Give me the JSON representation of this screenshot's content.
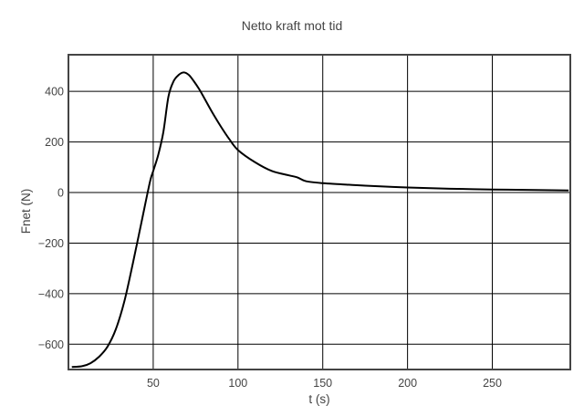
{
  "chart_data": {
    "type": "line",
    "title": "Netto kraft mot tid",
    "xlabel": "t (s)",
    "ylabel": "Fnet (N)",
    "xlim": [
      0,
      296
    ],
    "ylim": [
      -700,
      545
    ],
    "xticks": [
      50,
      100,
      150,
      200,
      250
    ],
    "xtick_labels": [
      "50",
      "100",
      "150",
      "200",
      "250"
    ],
    "yticks": [
      -600,
      -400,
      -200,
      0,
      200,
      400
    ],
    "ytick_labels": [
      "−600",
      "−400",
      "−200",
      "0",
      "200",
      "400"
    ],
    "grid": true,
    "series": [
      {
        "color": "#000000",
        "x": [
          2,
          8,
          13,
          18,
          23,
          28,
          33,
          38,
          43,
          48,
          50,
          53,
          56,
          59,
          62,
          65,
          68,
          71,
          74,
          77,
          80,
          85,
          90,
          95,
          100,
          110,
          120,
          130,
          135,
          140,
          150,
          160,
          175,
          200,
          225,
          250,
          275,
          295
        ],
        "y": [
          -690,
          -687,
          -675,
          -650,
          -610,
          -540,
          -430,
          -280,
          -120,
          40,
          85,
          150,
          240,
          380,
          440,
          465,
          475,
          465,
          440,
          410,
          375,
          315,
          260,
          210,
          168,
          120,
          85,
          68,
          60,
          45,
          37,
          33,
          27,
          20,
          15,
          12,
          10,
          8
        ]
      }
    ]
  }
}
